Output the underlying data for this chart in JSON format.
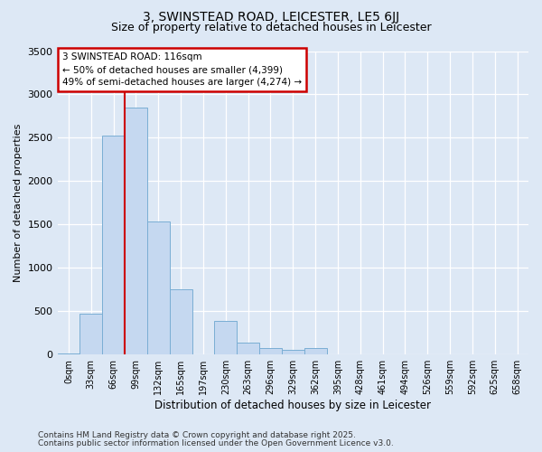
{
  "title1": "3, SWINSTEAD ROAD, LEICESTER, LE5 6JJ",
  "title2": "Size of property relative to detached houses in Leicester",
  "xlabel": "Distribution of detached houses by size in Leicester",
  "ylabel": "Number of detached properties",
  "bar_labels": [
    "0sqm",
    "33sqm",
    "66sqm",
    "99sqm",
    "132sqm",
    "165sqm",
    "197sqm",
    "230sqm",
    "263sqm",
    "296sqm",
    "329sqm",
    "362sqm",
    "395sqm",
    "428sqm",
    "461sqm",
    "494sqm",
    "526sqm",
    "559sqm",
    "592sqm",
    "625sqm",
    "658sqm"
  ],
  "bar_values": [
    15,
    470,
    2520,
    2850,
    1530,
    750,
    0,
    390,
    140,
    70,
    50,
    80,
    5,
    5,
    5,
    5,
    5,
    5,
    5,
    5,
    5
  ],
  "bar_color": "#c5d8f0",
  "bar_edge_color": "#7aaed4",
  "vline_x_idx": 3,
  "vline_color": "#cc0000",
  "ylim": [
    0,
    3500
  ],
  "yticks": [
    0,
    500,
    1000,
    1500,
    2000,
    2500,
    3000,
    3500
  ],
  "annotation_text": "3 SWINSTEAD ROAD: 116sqm\n← 50% of detached houses are smaller (4,399)\n49% of semi-detached houses are larger (4,274) →",
  "annotation_box_facecolor": "#ffffff",
  "annotation_box_edgecolor": "#cc0000",
  "footer1": "Contains HM Land Registry data © Crown copyright and database right 2025.",
  "footer2": "Contains public sector information licensed under the Open Government Licence v3.0.",
  "bg_color": "#dde8f5",
  "plot_bg_color": "#dde8f5",
  "title_fontsize": 10,
  "subtitle_fontsize": 9
}
